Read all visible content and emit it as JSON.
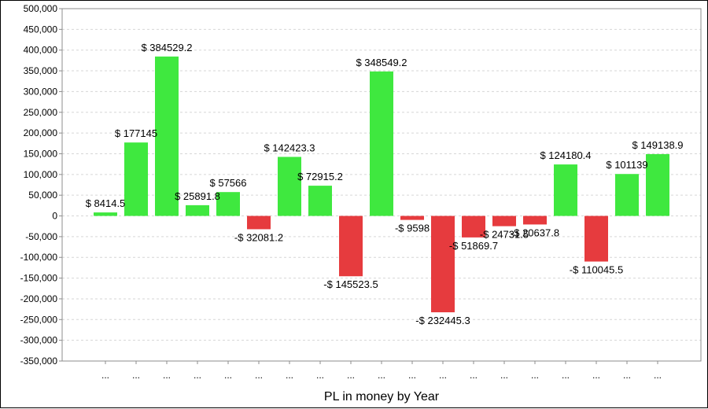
{
  "chart_data": {
    "type": "bar",
    "title": "",
    "xlabel": "PL in money by Year",
    "ylabel": "",
    "ylim": [
      -350000,
      500000
    ],
    "ytick_step": 50000,
    "grid": true,
    "categories": [
      "...",
      "...",
      "...",
      "...",
      "...",
      "...",
      "...",
      "...",
      "...",
      "...",
      "...",
      "...",
      "...",
      "...",
      "...",
      "...",
      "...",
      "...",
      "..."
    ],
    "values": [
      8414.5,
      177145,
      384529.2,
      25891.8,
      57566,
      -32081.2,
      142423.3,
      72915.2,
      -145523.5,
      348549.2,
      -9598,
      -232445.3,
      -51869.7,
      -24731.5,
      -20637.8,
      124180.4,
      -110045.5,
      101139,
      149138.9
    ],
    "data_labels": [
      "$ 8414.5",
      "$ 177145",
      "$ 384529.2",
      "$ 25891.8",
      "$ 57566",
      "-$ 32081.2",
      "$ 142423.3",
      "$ 72915.2",
      "-$ 145523.5",
      "$ 348549.2",
      "-$ 9598",
      "-$ 232445.3",
      "-$ 51869.7",
      "-$ 24731.5",
      "-$ 20637.8",
      "$ 124180.4",
      "-$ 110045.5",
      "$ 101139",
      "$ 149138.9"
    ],
    "colors": {
      "positive": "#3fe83f",
      "negative": "#e63b3e",
      "grid": "#d6d6d6",
      "axis": "#8c8c8c"
    }
  }
}
